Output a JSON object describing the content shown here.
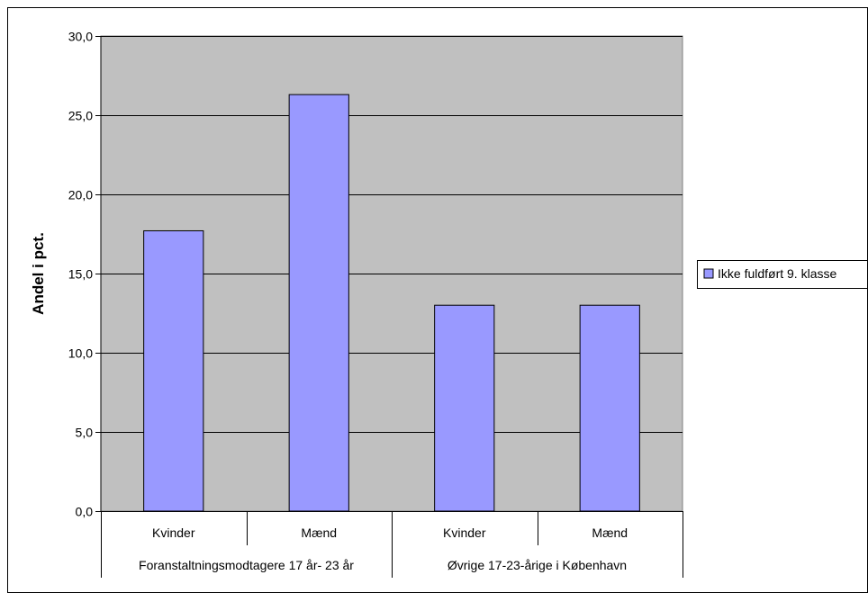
{
  "chart_data": {
    "type": "bar",
    "ylabel": "Andel i pct.",
    "ylim": [
      0,
      30
    ],
    "y_ticks": [
      "0,0",
      "5,0",
      "10,0",
      "15,0",
      "20,0",
      "25,0",
      "30,0"
    ],
    "y_tick_values": [
      0,
      5,
      10,
      15,
      20,
      25,
      30
    ],
    "categories": [
      "Kvinder",
      "Mænd",
      "Kvinder",
      "Mænd"
    ],
    "groups": [
      {
        "label": "Foranstaltningsmodtagere 17 år- 23 år",
        "span": 2
      },
      {
        "label": "Øvrige 17-23-årige i København",
        "span": 2
      }
    ],
    "series": [
      {
        "name": "Ikke fuldført 9. klasse",
        "values": [
          17.7,
          26.3,
          13.0,
          13.0
        ]
      }
    ],
    "legend_position": "right",
    "grid": true,
    "colors": {
      "bar": "#9999ff",
      "plot_background": "#c0c0c0",
      "gridline": "#000000"
    }
  }
}
